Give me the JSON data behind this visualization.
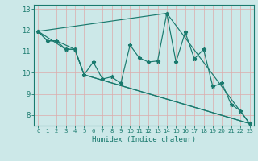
{
  "xlabel": "Humidex (Indice chaleur)",
  "bg_color": "#cce8e8",
  "line_color": "#1a7a6e",
  "grid_color_major": "#b8d8d8",
  "grid_color_minor": "#ccdddd",
  "xlim": [
    -0.5,
    23.5
  ],
  "ylim": [
    7.5,
    13.2
  ],
  "yticks": [
    8,
    9,
    10,
    11,
    12,
    13
  ],
  "xticks": [
    0,
    1,
    2,
    3,
    4,
    5,
    6,
    7,
    8,
    9,
    10,
    11,
    12,
    13,
    14,
    15,
    16,
    17,
    18,
    19,
    20,
    21,
    22,
    23
  ],
  "series1_x": [
    0,
    1,
    2,
    3,
    4,
    5,
    6,
    7,
    8,
    9,
    10,
    11,
    12,
    13,
    14,
    15,
    16,
    17,
    18,
    19,
    20,
    21,
    22,
    23
  ],
  "series1_y": [
    11.95,
    11.5,
    11.5,
    11.1,
    11.1,
    9.9,
    10.5,
    9.7,
    9.8,
    9.5,
    11.3,
    10.7,
    10.5,
    10.55,
    12.8,
    10.5,
    11.9,
    10.65,
    11.1,
    9.35,
    9.5,
    8.5,
    8.2,
    7.6
  ],
  "series2_x": [
    0,
    3,
    4,
    5,
    23
  ],
  "series2_y": [
    11.95,
    11.1,
    11.1,
    9.9,
    7.6
  ],
  "series3_x": [
    0,
    1,
    2,
    4,
    5,
    23
  ],
  "series3_y": [
    11.95,
    11.5,
    11.5,
    11.1,
    9.9,
    7.6
  ],
  "series4_x": [
    0,
    14,
    23
  ],
  "series4_y": [
    11.95,
    12.8,
    7.6
  ]
}
